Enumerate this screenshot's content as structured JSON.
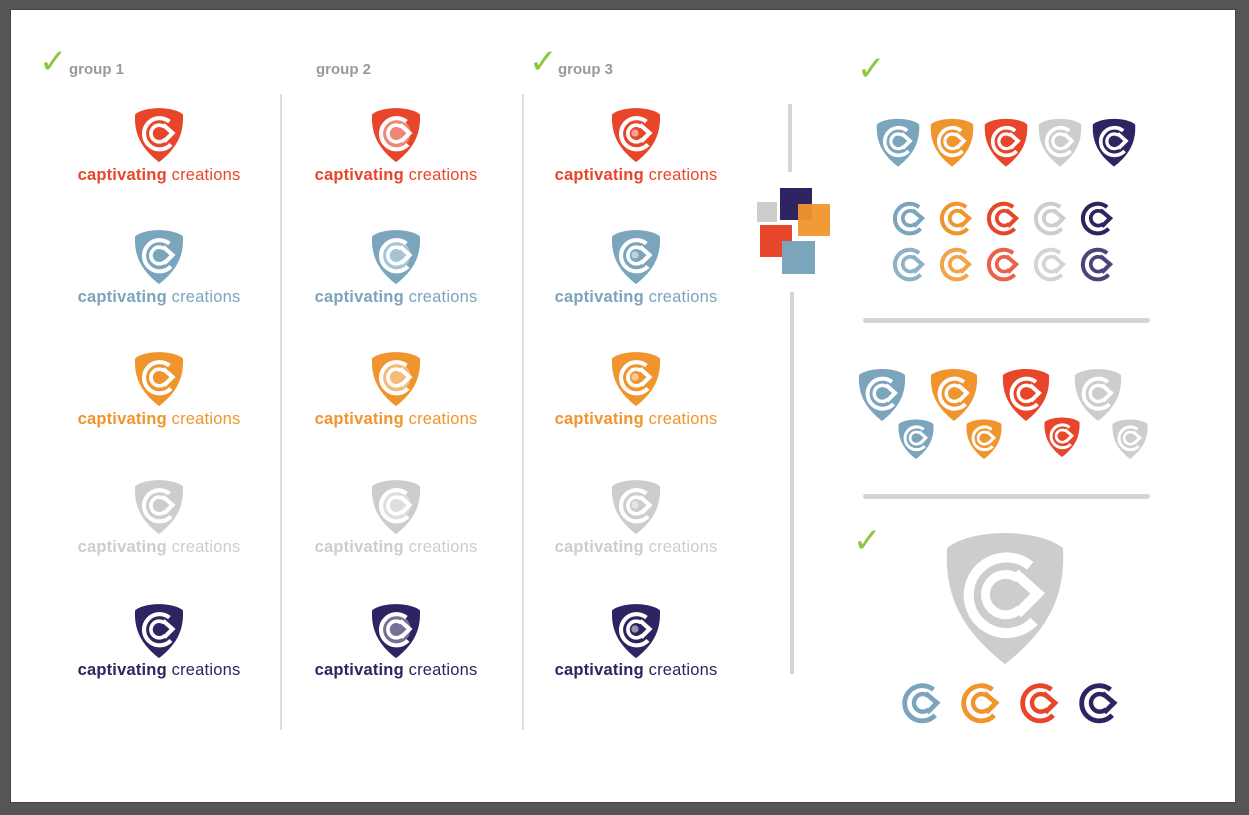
{
  "groups": [
    {
      "label": "group 1",
      "checked": true
    },
    {
      "label": "group 2",
      "checked": false
    },
    {
      "label": "group 3",
      "checked": true
    }
  ],
  "brand": {
    "bold": "captivating",
    "light": "creations"
  },
  "palette": {
    "red": "#e8462b",
    "blue": "#7aa5bc",
    "orange": "#f0952d",
    "gray": "#cdcdcd",
    "navy": "#2d2461",
    "check_green": "#8dc63f"
  },
  "rows": [
    "red",
    "blue",
    "orange",
    "gray",
    "navy"
  ],
  "icons": {
    "logo": "shield-c-arrow-icon",
    "check": "checkmark-icon"
  }
}
